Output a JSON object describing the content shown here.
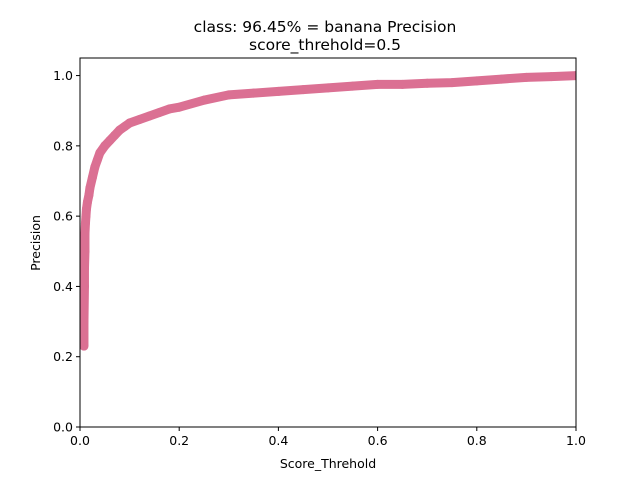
{
  "chart_data": {
    "type": "line",
    "title": "class: 96.45% = banana Precision",
    "subtitle": "score_threhold=0.5",
    "xlabel": "Score_Threhold",
    "ylabel": "Precision",
    "xlim": [
      0.0,
      1.0
    ],
    "ylim": [
      0.0,
      1.05
    ],
    "x_ticks": [
      "0.0",
      "0.2",
      "0.4",
      "0.6",
      "0.8",
      "1.0"
    ],
    "y_ticks": [
      "0.0",
      "0.2",
      "0.4",
      "0.6",
      "0.8",
      "1.0"
    ],
    "grid": false,
    "line_color": "#db7093",
    "series": [
      {
        "x": [
          0.008,
          0.008,
          0.009,
          0.009,
          0.01,
          0.01,
          0.011,
          0.012,
          0.013,
          0.015,
          0.018,
          0.02,
          0.025,
          0.03,
          0.035,
          0.04,
          0.05,
          0.06,
          0.07,
          0.08,
          0.09,
          0.1,
          0.12,
          0.14,
          0.16,
          0.18,
          0.2,
          0.25,
          0.3,
          0.35,
          0.4,
          0.45,
          0.5,
          0.55,
          0.6,
          0.65,
          0.7,
          0.75,
          0.8,
          0.85,
          0.9,
          0.95,
          1.0
        ],
        "y": [
          0.23,
          0.3,
          0.4,
          0.45,
          0.5,
          0.55,
          0.58,
          0.6,
          0.62,
          0.64,
          0.66,
          0.68,
          0.71,
          0.74,
          0.76,
          0.78,
          0.8,
          0.815,
          0.83,
          0.845,
          0.855,
          0.865,
          0.875,
          0.885,
          0.895,
          0.905,
          0.91,
          0.93,
          0.945,
          0.95,
          0.955,
          0.96,
          0.965,
          0.97,
          0.975,
          0.975,
          0.978,
          0.98,
          0.985,
          0.99,
          0.995,
          0.997,
          1.0
        ]
      }
    ]
  }
}
